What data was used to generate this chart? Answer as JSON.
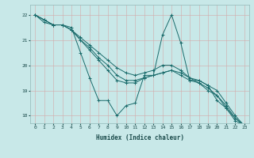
{
  "xlabel": "Humidex (Indice chaleur)",
  "bg_color": "#c8e8e8",
  "grid_color": "#b0d4d4",
  "line_color": "#1a6b6b",
  "ylim": [
    17.7,
    22.4
  ],
  "xlim": [
    -0.5,
    23.5
  ],
  "yticks": [
    18,
    19,
    20,
    21,
    22
  ],
  "xticks": [
    0,
    1,
    2,
    3,
    4,
    5,
    6,
    7,
    8,
    9,
    10,
    11,
    12,
    13,
    14,
    15,
    16,
    17,
    18,
    19,
    20,
    21,
    22,
    23
  ],
  "series": [
    [
      22.0,
      21.8,
      21.6,
      21.6,
      21.5,
      20.5,
      19.5,
      18.6,
      18.6,
      18.0,
      18.4,
      18.5,
      19.6,
      19.6,
      21.2,
      22.0,
      20.9,
      19.4,
      19.4,
      19.2,
      18.6,
      18.3,
      17.8,
      17.6
    ],
    [
      22.0,
      21.7,
      21.6,
      21.6,
      21.4,
      21.0,
      20.6,
      20.2,
      19.8,
      19.4,
      19.3,
      19.3,
      19.5,
      19.6,
      19.7,
      19.8,
      19.7,
      19.5,
      19.4,
      19.2,
      19.0,
      18.5,
      18.0,
      17.6
    ],
    [
      22.0,
      21.8,
      21.6,
      21.6,
      21.4,
      21.0,
      20.7,
      20.3,
      20.0,
      19.6,
      19.4,
      19.4,
      19.5,
      19.6,
      19.7,
      19.8,
      19.6,
      19.4,
      19.3,
      19.0,
      18.8,
      18.4,
      17.9,
      17.6
    ],
    [
      22.0,
      21.8,
      21.6,
      21.6,
      21.4,
      21.1,
      20.8,
      20.5,
      20.2,
      19.9,
      19.7,
      19.6,
      19.7,
      19.8,
      20.0,
      20.0,
      19.8,
      19.5,
      19.3,
      19.1,
      18.8,
      18.3,
      17.9,
      17.6
    ]
  ]
}
